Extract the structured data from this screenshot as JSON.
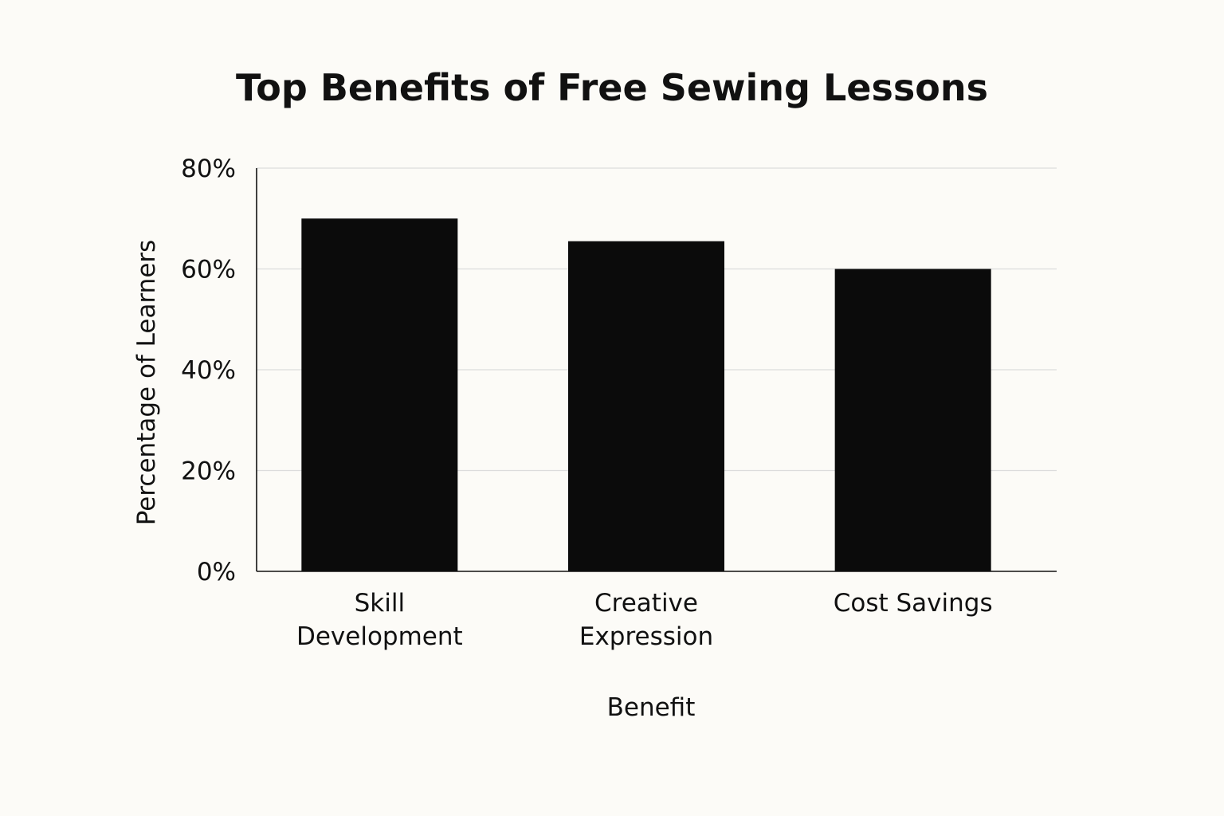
{
  "chart_data": {
    "type": "bar",
    "title": "Top Benefits of Free Sewing Lessons",
    "xlabel": "Benefit",
    "ylabel": "Percentage of Learners",
    "categories": [
      [
        "Skill",
        "Development"
      ],
      [
        "Creative",
        "Expression"
      ],
      [
        "Cost Savings"
      ]
    ],
    "values": [
      70,
      65.5,
      60
    ],
    "ylim": [
      0,
      80
    ],
    "yticks": [
      0,
      20,
      40,
      60,
      80
    ],
    "ytick_labels": [
      "0%",
      "20%",
      "40%",
      "60%",
      "80%"
    ],
    "bar_color": "#0b0b0b",
    "grid": true,
    "grid_color": "#dcdcdc",
    "legend": "none"
  }
}
